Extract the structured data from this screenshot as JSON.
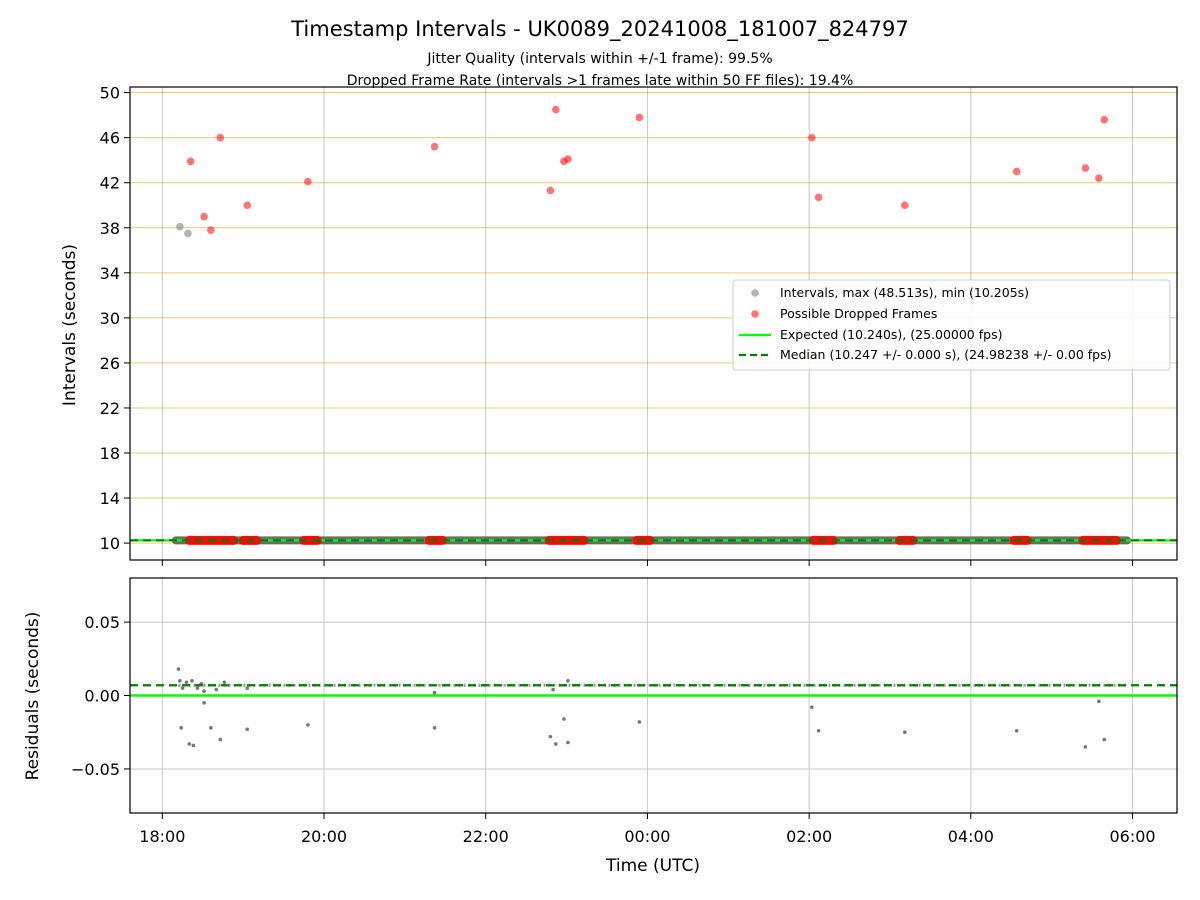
{
  "chart_data": [
    {
      "type": "scatter",
      "panel": "intervals",
      "title": "Timestamp Intervals - UK0089_20241008_181007_824797",
      "subtitle_lines": [
        "Jitter Quality (intervals within +/-1 frame): 99.5%",
        "Dropped Frame Rate (intervals >1 frames late within 50 FF files): 19.4%"
      ],
      "ylabel": "Intervals (seconds)",
      "xlabel": "",
      "ylim": [
        8.5,
        50.5
      ],
      "xlim": [
        "17:36",
        "06:33"
      ],
      "y_ticks": [
        10,
        14,
        18,
        22,
        26,
        30,
        34,
        38,
        42,
        46,
        50
      ],
      "y_tick_labels": [
        "10",
        "14",
        "18",
        "22",
        "26",
        "30",
        "34",
        "38",
        "42",
        "46",
        "50"
      ],
      "x_ticks": [
        "18:00",
        "20:00",
        "22:00",
        "00:00",
        "02:00",
        "04:00",
        "06:00"
      ],
      "grid": "vertical gridlines on x ticks; horizontal goldenrod gridlines on y ticks",
      "legend_position": "center-right",
      "series": [
        {
          "name": "Intervals, max (48.513s), min (10.205s)",
          "kind": "scatter",
          "color": "#808080",
          "baseline_band": {
            "from": "18:10",
            "to": "05:56",
            "y": 10.24
          },
          "points": [
            {
              "x": "18:13",
              "y": 38.1
            },
            {
              "x": "18:19",
              "y": 37.5
            }
          ]
        },
        {
          "name": "Possible Dropped Frames",
          "kind": "scatter",
          "color": "#ff0000",
          "points": [
            {
              "x": "18:21",
              "y": 43.9
            },
            {
              "x": "18:31",
              "y": 39.0
            },
            {
              "x": "18:36",
              "y": 37.8
            },
            {
              "x": "18:43",
              "y": 46.0
            },
            {
              "x": "19:03",
              "y": 40.0
            },
            {
              "x": "19:48",
              "y": 42.1
            },
            {
              "x": "21:22",
              "y": 45.2
            },
            {
              "x": "22:48",
              "y": 41.3
            },
            {
              "x": "22:52",
              "y": 48.5
            },
            {
              "x": "22:58",
              "y": 43.9
            },
            {
              "x": "23:01",
              "y": 44.1
            },
            {
              "x": "23:54",
              "y": 47.8
            },
            {
              "x": "02:02",
              "y": 46.0
            },
            {
              "x": "02:07",
              "y": 40.7
            },
            {
              "x": "03:11",
              "y": 40.0
            },
            {
              "x": "04:34",
              "y": 43.0
            },
            {
              "x": "05:25",
              "y": 43.3
            },
            {
              "x": "05:35",
              "y": 42.4
            },
            {
              "x": "05:39",
              "y": 47.6
            }
          ],
          "baseline_clusters": [
            {
              "from": "18:20",
              "to": "18:53",
              "y": 10.24
            },
            {
              "from": "19:00",
              "to": "19:10",
              "y": 10.24
            },
            {
              "from": "19:45",
              "to": "19:55",
              "y": 10.24
            },
            {
              "from": "21:18",
              "to": "21:28",
              "y": 10.24
            },
            {
              "from": "22:47",
              "to": "23:13",
              "y": 10.24
            },
            {
              "from": "23:52",
              "to": "00:02",
              "y": 10.24
            },
            {
              "from": "02:03",
              "to": "02:18",
              "y": 10.24
            },
            {
              "from": "03:07",
              "to": "03:17",
              "y": 10.24
            },
            {
              "from": "04:32",
              "to": "04:42",
              "y": 10.24
            },
            {
              "from": "05:23",
              "to": "05:48",
              "y": 10.24
            }
          ]
        },
        {
          "name": "Expected (10.240s), (25.00000 fps)",
          "kind": "hline",
          "y": 10.24,
          "color": "#00ff00",
          "style": "solid"
        },
        {
          "name": "Median (10.247 +/- 0.000 s), (24.98238 +/- 0.00 fps)",
          "kind": "hline",
          "y": 10.247,
          "color": "#008000",
          "style": "dashed"
        }
      ]
    },
    {
      "type": "scatter",
      "panel": "residuals",
      "ylabel": "Residuals (seconds)",
      "xlabel": "Time (UTC)",
      "ylim": [
        -0.08,
        0.08
      ],
      "y_ticks": [
        0.05,
        0.0,
        -0.05
      ],
      "y_tick_labels": [
        "0.05",
        "0.00",
        "−0.05"
      ],
      "x_ticks": [
        "18:00",
        "20:00",
        "22:00",
        "00:00",
        "02:00",
        "04:00",
        "06:00"
      ],
      "x_tick_labels": [
        "18:00",
        "20:00",
        "22:00",
        "00:00",
        "02:00",
        "04:00",
        "06:00"
      ],
      "grid": "both axes",
      "series": [
        {
          "kind": "scatter",
          "color": "#555555",
          "band": {
            "from": "18:12",
            "to": "05:56",
            "y": 0.007
          },
          "points": [
            {
              "x": "18:12",
              "y": 0.018
            },
            {
              "x": "18:13",
              "y": 0.01
            },
            {
              "x": "18:15",
              "y": 0.005
            },
            {
              "x": "18:18",
              "y": 0.009
            },
            {
              "x": "18:22",
              "y": 0.01
            },
            {
              "x": "18:26",
              "y": 0.005
            },
            {
              "x": "18:29",
              "y": 0.008
            },
            {
              "x": "18:31",
              "y": 0.003
            },
            {
              "x": "18:40",
              "y": 0.004
            },
            {
              "x": "18:46",
              "y": 0.009
            },
            {
              "x": "19:03",
              "y": 0.005
            },
            {
              "x": "21:22",
              "y": 0.002
            },
            {
              "x": "22:50",
              "y": 0.004
            },
            {
              "x": "23:01",
              "y": 0.01
            },
            {
              "x": "18:14",
              "y": -0.022
            },
            {
              "x": "18:20",
              "y": -0.033
            },
            {
              "x": "18:23",
              "y": -0.034
            },
            {
              "x": "18:31",
              "y": -0.005
            },
            {
              "x": "18:36",
              "y": -0.022
            },
            {
              "x": "18:43",
              "y": -0.03
            },
            {
              "x": "19:03",
              "y": -0.023
            },
            {
              "x": "19:48",
              "y": -0.02
            },
            {
              "x": "21:22",
              "y": -0.022
            },
            {
              "x": "22:48",
              "y": -0.028
            },
            {
              "x": "22:52",
              "y": -0.033
            },
            {
              "x": "22:58",
              "y": -0.016
            },
            {
              "x": "23:01",
              "y": -0.032
            },
            {
              "x": "23:54",
              "y": -0.018
            },
            {
              "x": "02:02",
              "y": -0.008
            },
            {
              "x": "02:07",
              "y": -0.024
            },
            {
              "x": "03:11",
              "y": -0.025
            },
            {
              "x": "04:34",
              "y": -0.024
            },
            {
              "x": "05:25",
              "y": -0.035
            },
            {
              "x": "05:35",
              "y": -0.004
            },
            {
              "x": "05:39",
              "y": -0.03
            }
          ]
        },
        {
          "kind": "hline",
          "y": 0.0,
          "color": "#00ff00",
          "style": "solid"
        },
        {
          "kind": "hline",
          "y": 0.007,
          "color": "#008000",
          "style": "dashed"
        }
      ]
    }
  ]
}
